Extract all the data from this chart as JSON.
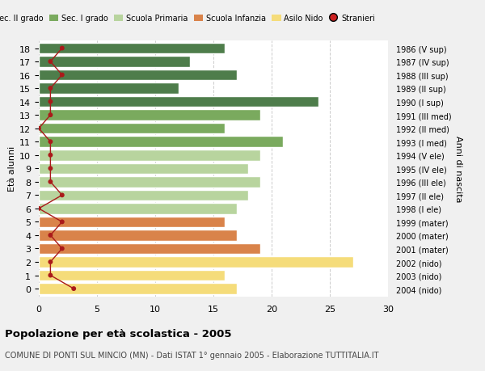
{
  "ages": [
    18,
    17,
    16,
    15,
    14,
    13,
    12,
    11,
    10,
    9,
    8,
    7,
    6,
    5,
    4,
    3,
    2,
    1,
    0
  ],
  "bar_values": [
    16,
    13,
    17,
    12,
    24,
    19,
    16,
    21,
    19,
    18,
    19,
    18,
    17,
    16,
    17,
    19,
    27,
    16,
    17
  ],
  "bar_colors": [
    "#4e7d4b",
    "#4e7d4b",
    "#4e7d4b",
    "#4e7d4b",
    "#4e7d4b",
    "#7aaa5e",
    "#7aaa5e",
    "#7aaa5e",
    "#b8d49e",
    "#b8d49e",
    "#b8d49e",
    "#b8d49e",
    "#b8d49e",
    "#d9834a",
    "#d9834a",
    "#d9834a",
    "#f5dc7a",
    "#f5dc7a",
    "#f5dc7a"
  ],
  "right_labels": [
    "1986 (V sup)",
    "1987 (IV sup)",
    "1988 (III sup)",
    "1989 (II sup)",
    "1990 (I sup)",
    "1991 (III med)",
    "1992 (II med)",
    "1993 (I med)",
    "1994 (V ele)",
    "1995 (IV ele)",
    "1996 (III ele)",
    "1997 (II ele)",
    "1998 (I ele)",
    "1999 (mater)",
    "2000 (mater)",
    "2001 (mater)",
    "2002 (nido)",
    "2003 (nido)",
    "2004 (nido)"
  ],
  "stranieri_x": [
    2,
    1,
    2,
    1,
    1,
    1,
    0,
    1,
    1,
    1,
    1,
    2,
    0,
    2,
    1,
    2,
    1,
    1,
    3
  ],
  "title": "Popolazione per età scolastica - 2005",
  "subtitle": "COMUNE DI PONTI SUL MINCIO (MN) - Dati ISTAT 1° gennaio 2005 - Elaborazione TUTTITALIA.IT",
  "ylabel_left": "Età alunni",
  "ylabel_right": "Anni di nascita",
  "xlim": [
    0,
    30
  ],
  "xticks": [
    0,
    5,
    10,
    15,
    20,
    25,
    30
  ],
  "legend_labels": [
    "Sec. II grado",
    "Sec. I grado",
    "Scuola Primaria",
    "Scuola Infanzia",
    "Asilo Nido",
    "Stranieri"
  ],
  "legend_colors": [
    "#4e7d4b",
    "#7aaa5e",
    "#b8d49e",
    "#d9834a",
    "#f5dc7a",
    "#cc2020"
  ],
  "bg_color": "#f0f0f0",
  "plot_bg_color": "#ffffff",
  "grid_color": "#cccccc",
  "bar_height": 0.82,
  "stranieri_color": "#aa1a1a"
}
